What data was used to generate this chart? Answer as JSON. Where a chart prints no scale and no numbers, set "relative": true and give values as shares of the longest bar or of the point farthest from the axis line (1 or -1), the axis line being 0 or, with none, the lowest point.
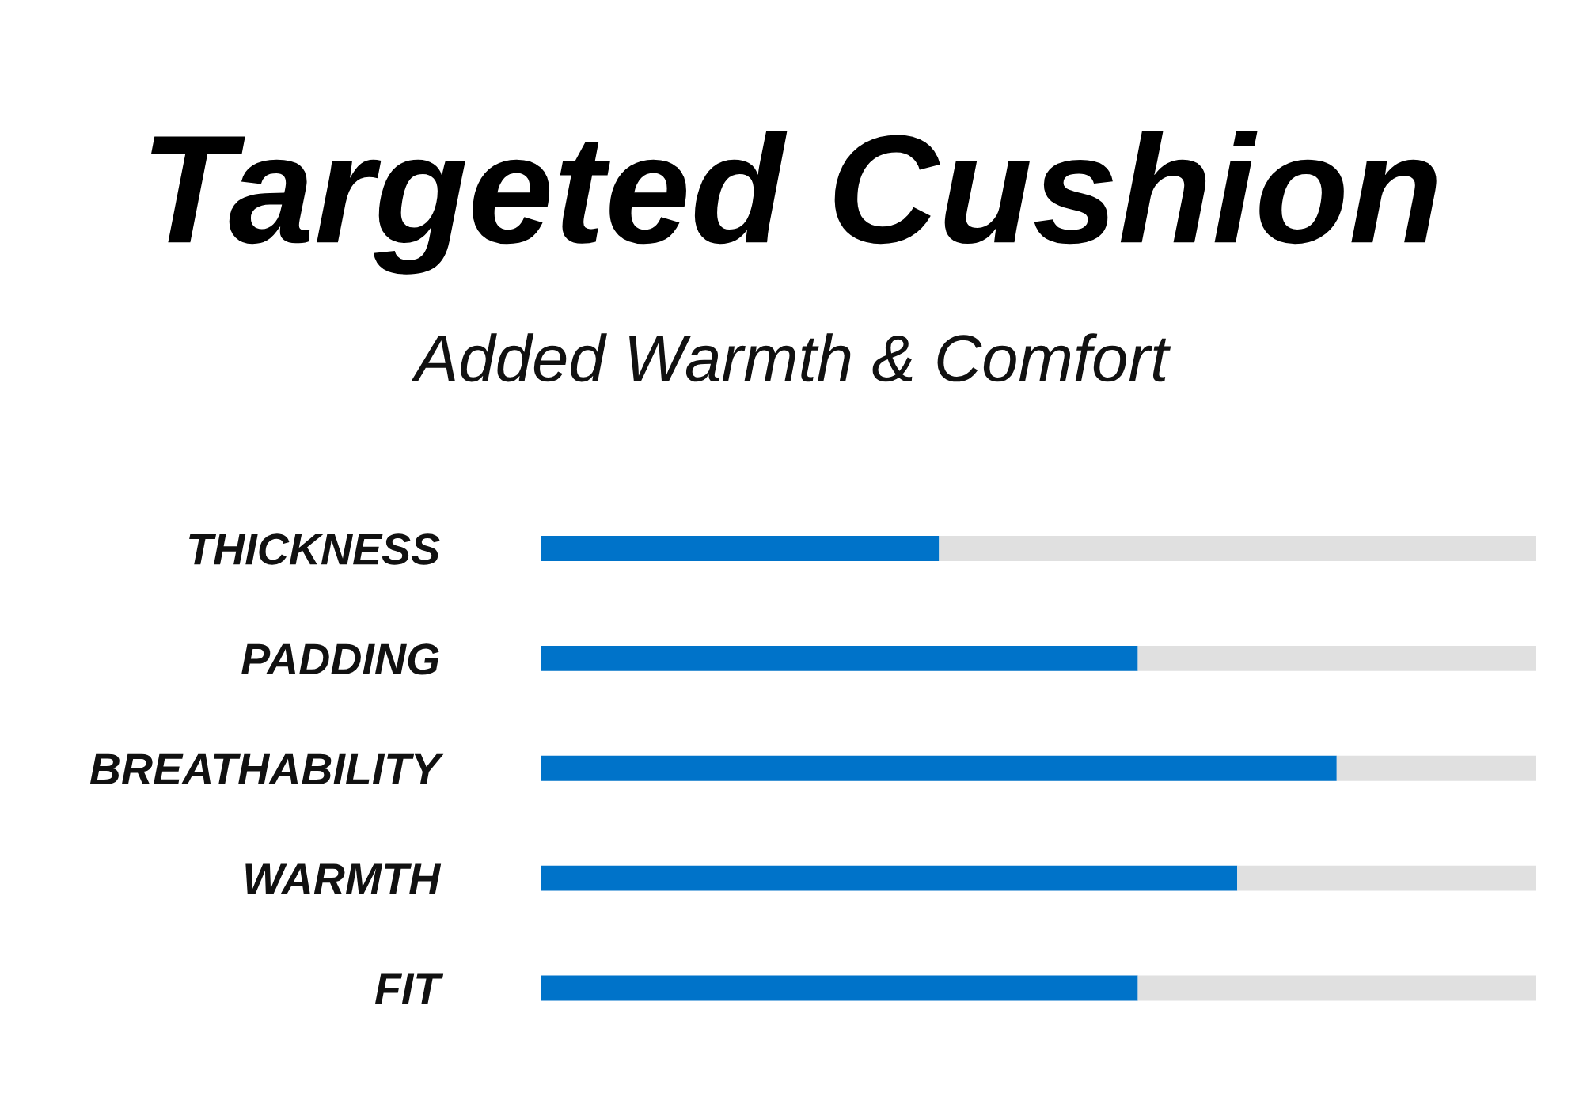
{
  "chart_data": {
    "type": "bar",
    "title": "Targeted Cushion",
    "subtitle": "Added Warmth & Comfort",
    "orientation": "horizontal",
    "stacked": true,
    "relative": true,
    "categories": [
      "THICKNESS",
      "PADDING",
      "BREATHABILITY",
      "WARMTH",
      "FIT"
    ],
    "series": [
      {
        "color": "#0073c9",
        "values": [
          0.4,
          0.6,
          0.8,
          0.7,
          0.6
        ]
      },
      {
        "color": "#e0e0e0",
        "values": [
          0.6,
          0.4,
          0.2,
          0.3,
          0.4
        ]
      }
    ]
  }
}
